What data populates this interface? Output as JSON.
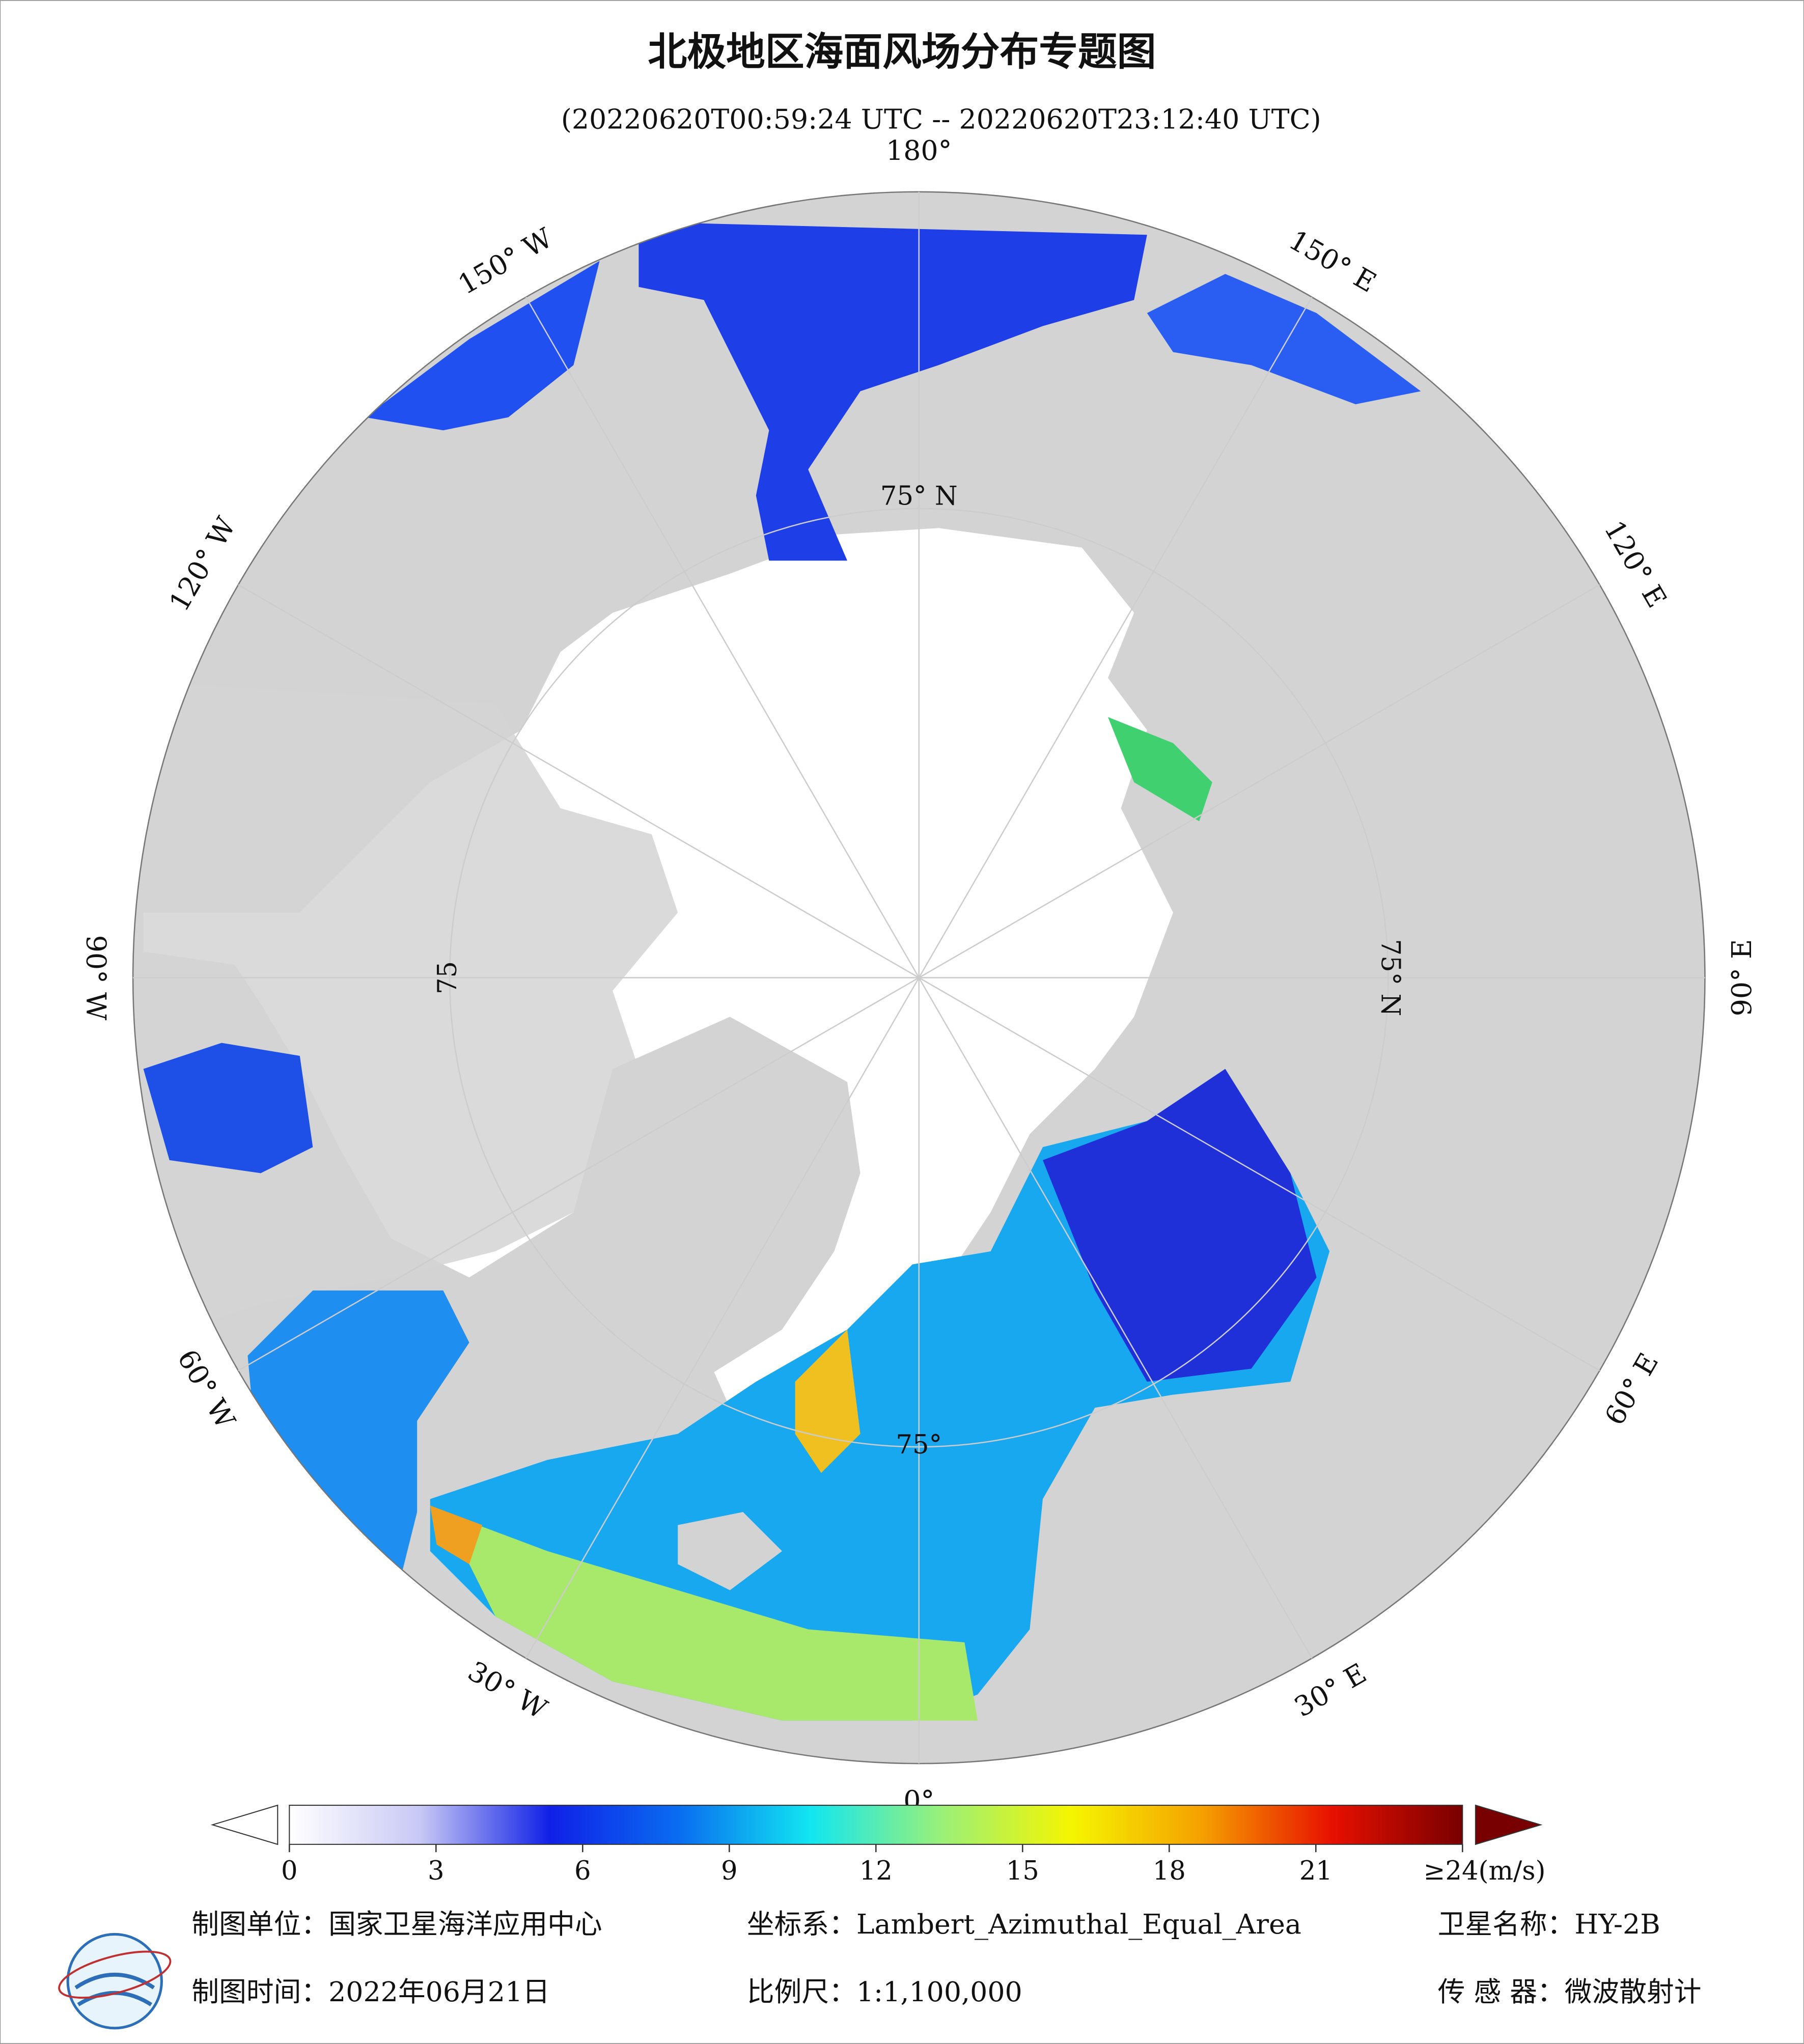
{
  "title": "北极地区海面风场分布专题图",
  "subtitle": "(20220620T00:59:24 UTC -- 20220620T23:12:40 UTC)",
  "map": {
    "meridians": [
      {
        "value": 180,
        "label": "180°"
      },
      {
        "value": -150,
        "label": "150° W"
      },
      {
        "value": -120,
        "label": "120° W"
      },
      {
        "value": -90,
        "label": "90° W"
      },
      {
        "value": -60,
        "label": "60° W"
      },
      {
        "value": -30,
        "label": "30° W"
      },
      {
        "value": 0,
        "label": "0°"
      },
      {
        "value": 30,
        "label": "30° E"
      },
      {
        "value": 60,
        "label": "60° E"
      },
      {
        "value": 90,
        "label": "90° E"
      },
      {
        "value": 120,
        "label": "120° E"
      },
      {
        "value": 150,
        "label": "150° E"
      }
    ],
    "parallel_labels": [
      "75° N",
      "75° N",
      "75",
      "75°"
    ],
    "land_color": "#d3d3d3"
  },
  "colorbar": {
    "colors": [
      "#ffffff",
      "#c8c8f5",
      "#1020e8",
      "#0a6ef0",
      "#12e6f0",
      "#9af078",
      "#f5f500",
      "#f5a000",
      "#e81000",
      "#780000"
    ],
    "lim": [
      0,
      24
    ],
    "ticks": [
      0,
      3,
      6,
      9,
      12,
      15,
      18,
      21,
      {
        "value": 24,
        "label": "≥24(m/s)"
      }
    ]
  },
  "footer": {
    "unit": "制图单位：国家卫星海洋应用中心",
    "projection": "坐标系：Lambert_Azimuthal_Equal_Area",
    "satellite": "卫星名称：HY-2B",
    "date": "制图时间：2022年06月21日",
    "scale": "比例尺：1:1,100,000",
    "sensor": "传 感 器：微波散射计"
  }
}
